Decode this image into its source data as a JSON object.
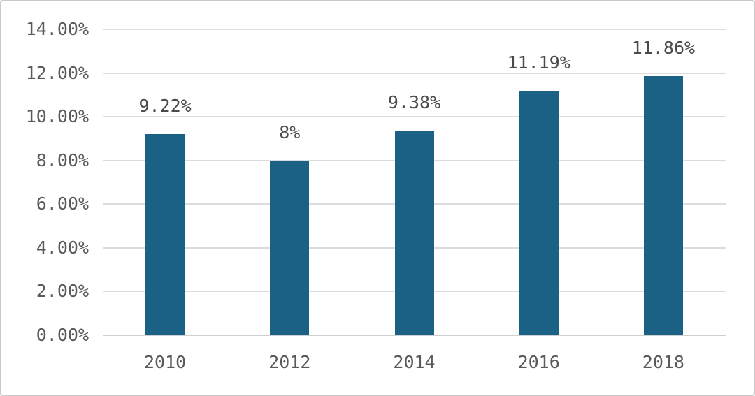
{
  "chart_data": {
    "type": "bar",
    "title": "",
    "xlabel": "",
    "ylabel": "",
    "categories": [
      "2010",
      "2012",
      "2014",
      "2016",
      "2018"
    ],
    "values": [
      9.22,
      8,
      9.38,
      11.19,
      11.86
    ],
    "value_labels": [
      "9.22%",
      "8%",
      "9.38%",
      "11.19%",
      "11.86%"
    ],
    "y_ticks": [
      "0.00%",
      "2.00%",
      "4.00%",
      "6.00%",
      "8.00%",
      "10.00%",
      "12.00%",
      "14.00%"
    ],
    "y_tick_values": [
      0,
      2,
      4,
      6,
      8,
      10,
      12,
      14
    ],
    "ylim": [
      0,
      14
    ],
    "grid": true,
    "legend_position": "none",
    "bar_color": "#1a6185",
    "gridline_color": "#dcdcdc",
    "zero_line_color": "#cfcfcf",
    "axis_text_color": "#5a5a5a",
    "value_label_color": "#4a4a4a",
    "frame_border_color": "#c9c9c9",
    "background_color": "#ffffff"
  }
}
